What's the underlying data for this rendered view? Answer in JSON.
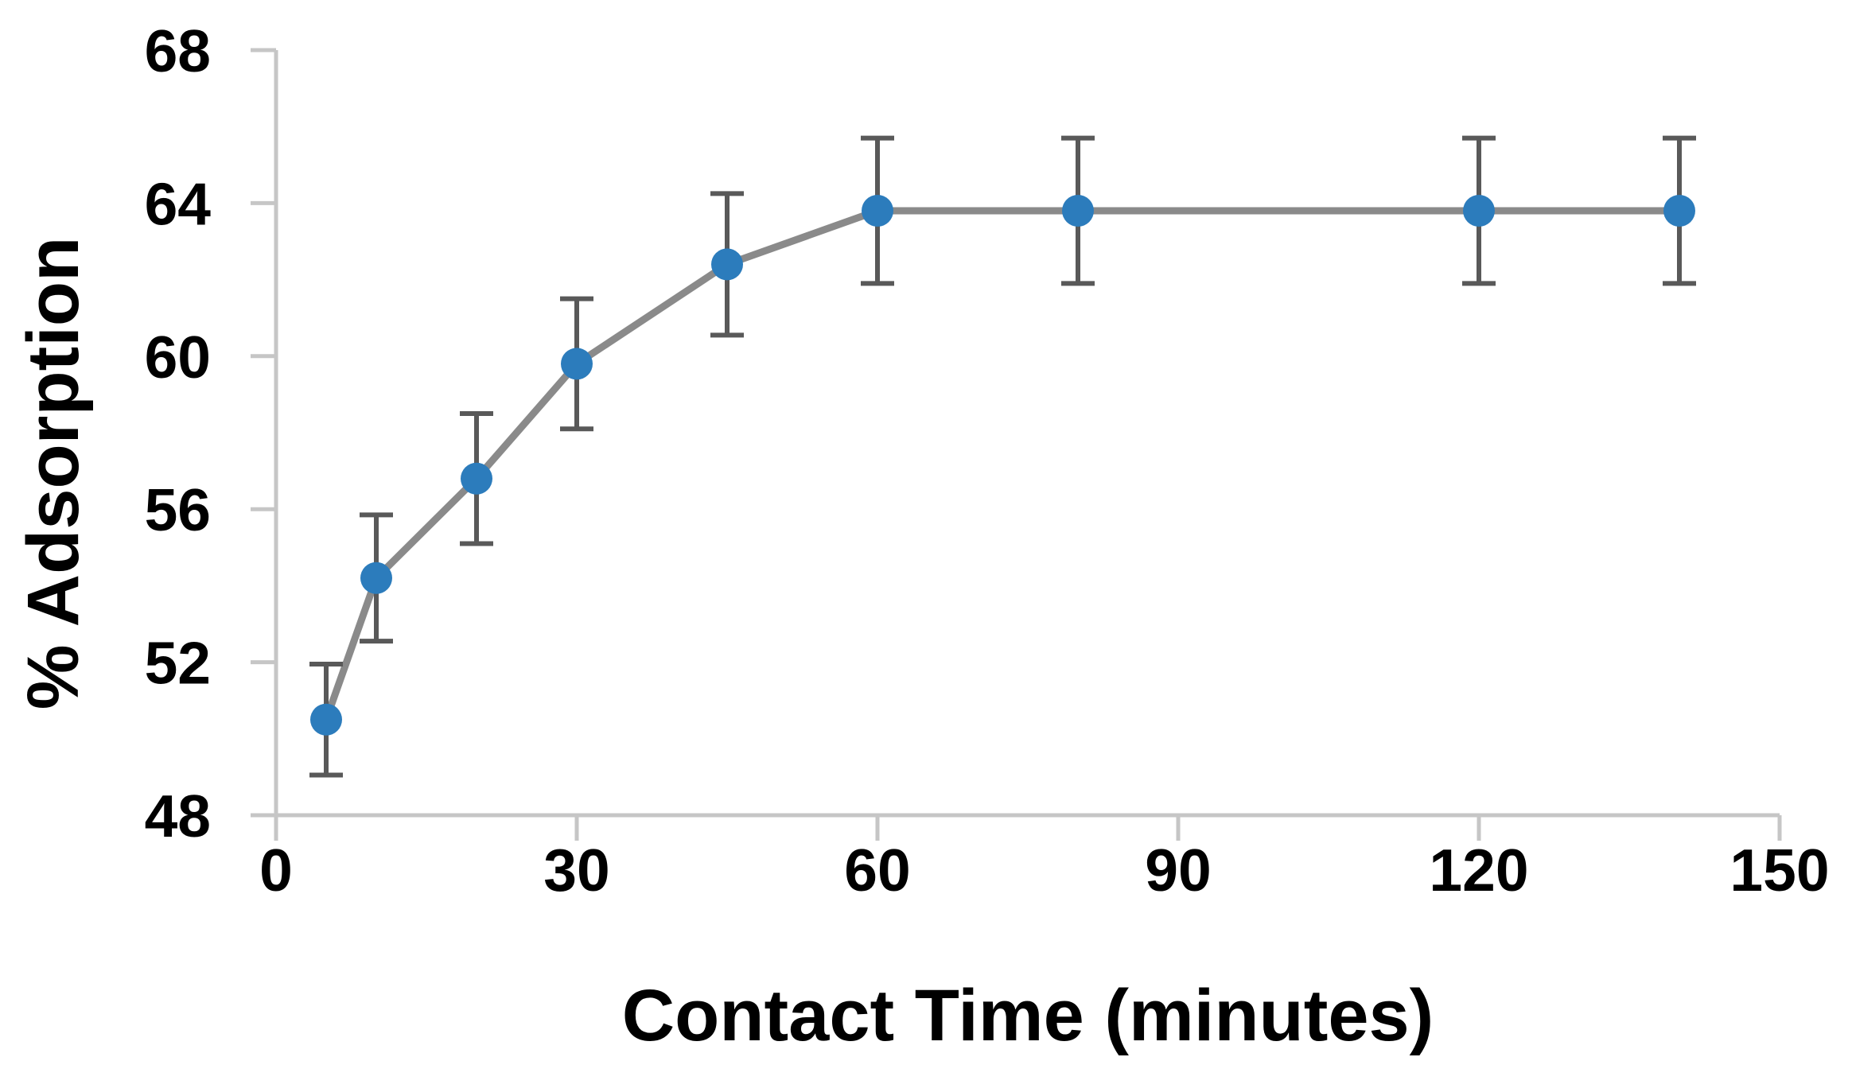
{
  "chart_data": {
    "type": "line",
    "title": "",
    "xlabel": "Contact Time (minutes)",
    "ylabel": "% Adsorption",
    "x": [
      5,
      10,
      20,
      30,
      45,
      60,
      80,
      120,
      140
    ],
    "y": [
      50.5,
      54.2,
      56.8,
      59.8,
      62.4,
      63.8,
      63.8,
      63.8,
      63.8
    ],
    "y_error": [
      1.45,
      1.65,
      1.7,
      1.7,
      1.85,
      1.9,
      1.9,
      1.9,
      1.9
    ],
    "xlim": [
      0,
      150
    ],
    "ylim": [
      48,
      68
    ],
    "xticks": [
      0,
      30,
      60,
      90,
      120,
      150
    ],
    "yticks": [
      48,
      52,
      56,
      60,
      64,
      68
    ],
    "grid": false,
    "legend_position": "none",
    "marker_shape": "circle",
    "colors": {
      "marker": "#2C7CBC",
      "line": "#8A8A8A",
      "error_bar": "#595959",
      "axis": "#C6C6C6",
      "text": "#000000",
      "background": "#FFFFFF"
    }
  }
}
